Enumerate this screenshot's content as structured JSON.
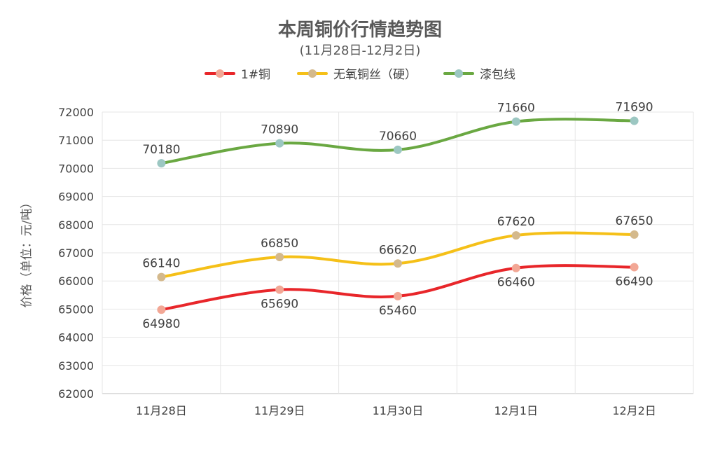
{
  "chart_data": {
    "type": "line",
    "title": "本周铜价行情趋势图",
    "subtitle": "(11月28日-12月2日)",
    "ylabel": "价格（单位：元/吨）",
    "xlabel": "",
    "categories": [
      "11月28日",
      "11月29日",
      "11月30日",
      "12月1日",
      "12月2日"
    ],
    "ylim": [
      62000,
      72000
    ],
    "yticks": [
      62000,
      63000,
      64000,
      65000,
      66000,
      67000,
      68000,
      69000,
      70000,
      71000,
      72000
    ],
    "grid": true,
    "legend_position": "top",
    "smooth": true,
    "series": [
      {
        "name": "1#铜",
        "color": "#e8262a",
        "marker_color": "#f2a795",
        "label_position": "below",
        "values": [
          64980,
          65690,
          65460,
          66460,
          66490
        ]
      },
      {
        "name": "无氧铜丝（硬）",
        "color": "#f5c018",
        "marker_color": "#d4b98c",
        "label_position": "above",
        "values": [
          66140,
          66850,
          66620,
          67620,
          67650
        ]
      },
      {
        "name": "漆包线",
        "color": "#6aa842",
        "marker_color": "#9cc7c2",
        "label_position": "above",
        "values": [
          70180,
          70890,
          70660,
          71660,
          71690
        ]
      }
    ]
  }
}
